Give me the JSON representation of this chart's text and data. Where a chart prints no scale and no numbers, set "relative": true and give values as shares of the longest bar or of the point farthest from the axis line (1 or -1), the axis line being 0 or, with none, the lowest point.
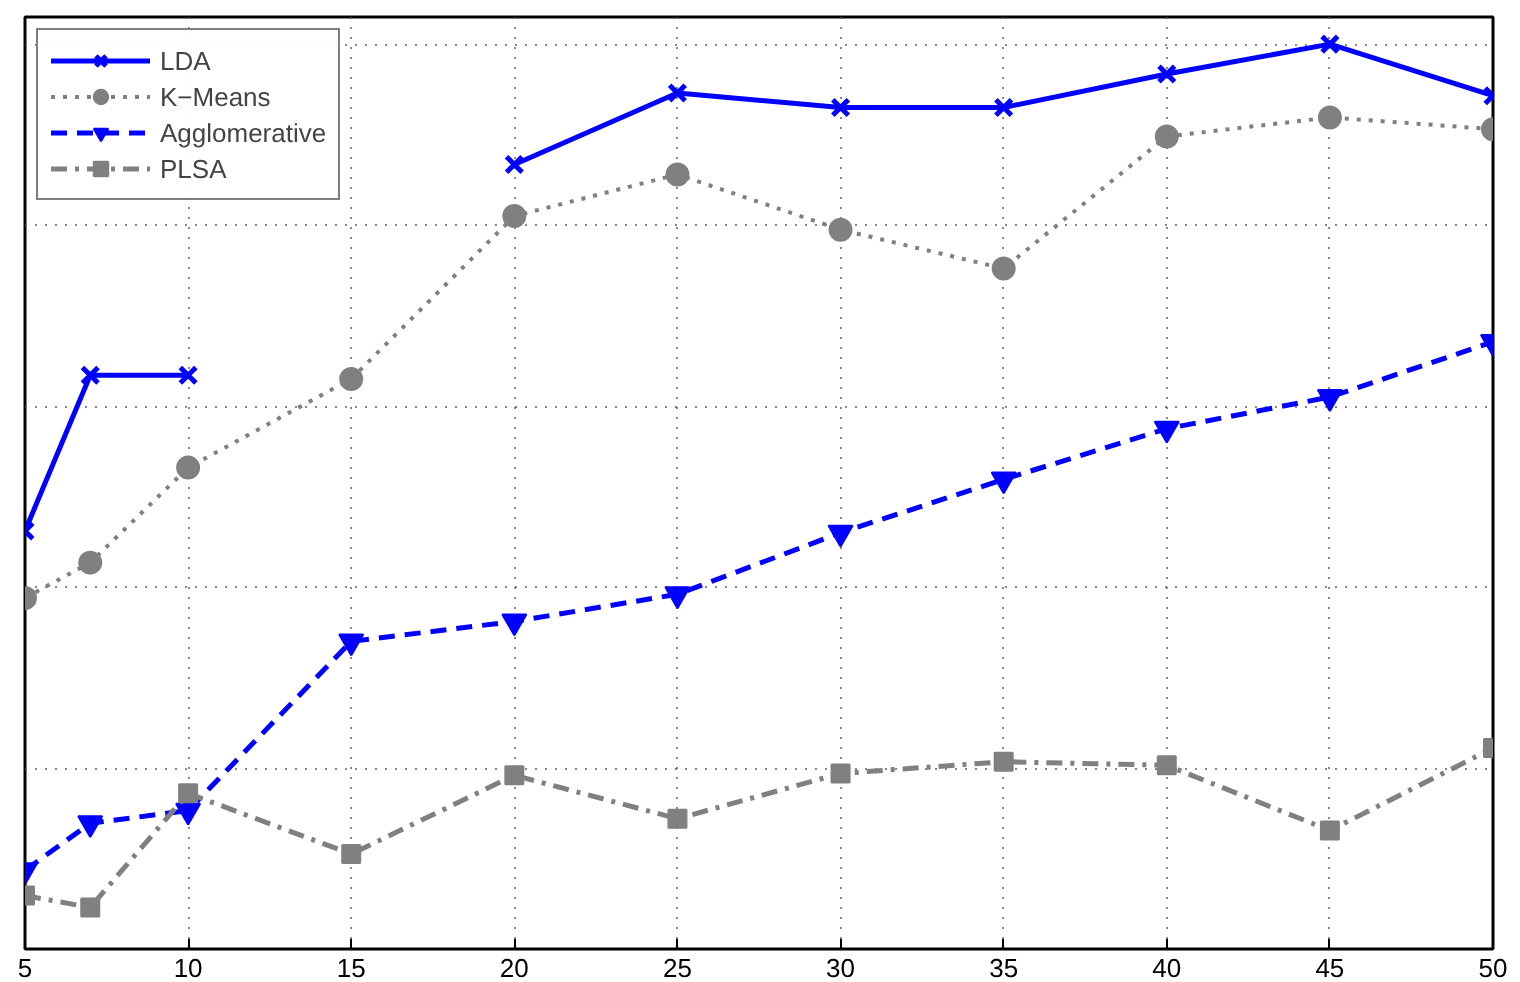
{
  "chart_data": {
    "type": "line",
    "relative": true,
    "x": [
      5,
      7,
      10,
      15,
      20,
      25,
      30,
      35,
      40,
      45,
      50
    ],
    "xlim": [
      5,
      50
    ],
    "xticks": [
      5,
      10,
      15,
      20,
      25,
      30,
      35,
      40,
      45,
      50
    ],
    "grid": true,
    "legend": "top left",
    "series": [
      {
        "name": "LDA",
        "color": "#0000ff",
        "marker": "cross",
        "line_style": "solid",
        "values": [
          0.462,
          0.634,
          0.634,
          null,
          0.867,
          0.946,
          0.93,
          0.93,
          0.967,
          1.0,
          0.943
        ]
      },
      {
        "name": "K−Means",
        "color": "#808080",
        "marker": "circle",
        "line_style": "dotted",
        "values": [
          0.388,
          0.427,
          0.532,
          0.63,
          0.81,
          0.856,
          0.795,
          0.752,
          0.898,
          0.919,
          0.906
        ]
      },
      {
        "name": "Agglomerative",
        "color": "#0000ff",
        "marker": "triangle",
        "line_style": "dashed",
        "values": [
          0.087,
          0.139,
          0.153,
          0.34,
          0.362,
          0.392,
          0.46,
          0.519,
          0.575,
          0.61,
          0.671
        ]
      },
      {
        "name": "PLSA",
        "color": "#808080",
        "marker": "square",
        "line_style": "dashdot",
        "values": [
          0.059,
          0.046,
          0.172,
          0.105,
          0.192,
          0.144,
          0.194,
          0.207,
          0.203,
          0.131,
          0.222
        ]
      }
    ]
  }
}
